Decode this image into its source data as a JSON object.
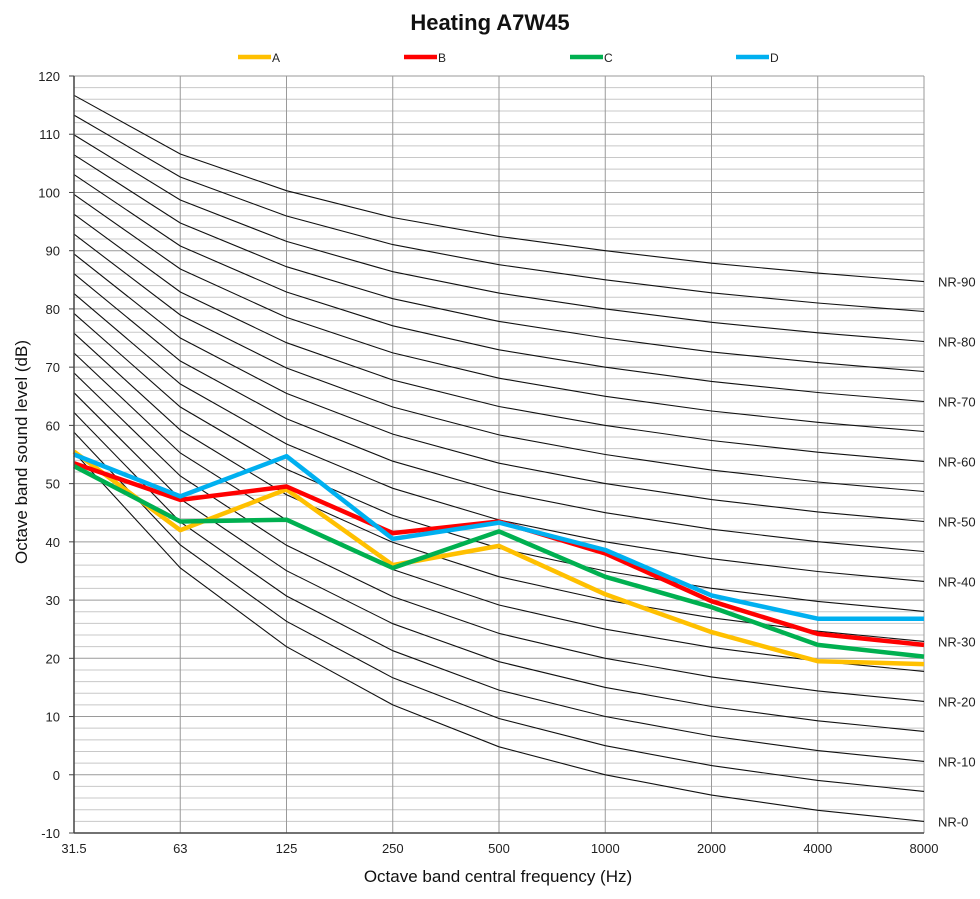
{
  "chart_data": {
    "type": "line",
    "title": "Heating A7W45",
    "xlabel": "Octave band central frequency (Hz)",
    "ylabel": "Octave band sound level (dB)",
    "categories": [
      "31.5",
      "63",
      "125",
      "250",
      "500",
      "1000",
      "2000",
      "4000",
      "8000"
    ],
    "ylim": [
      -10,
      120
    ],
    "yticks": [
      -10,
      0,
      10,
      20,
      30,
      40,
      50,
      60,
      70,
      80,
      90,
      100,
      110,
      120
    ],
    "grid": true,
    "legend_position": "top",
    "series": [
      {
        "name": "A",
        "color": "#FFC000",
        "values": [
          55.5,
          42,
          49,
          36,
          39.3,
          31,
          24.5,
          19.5,
          19
        ]
      },
      {
        "name": "B",
        "color": "#FF0000",
        "values": [
          53.5,
          47.2,
          49.5,
          41.5,
          43.5,
          38,
          29.8,
          24.2,
          22.3
        ]
      },
      {
        "name": "C",
        "color": "#00B050",
        "values": [
          53,
          43.5,
          43.8,
          35.5,
          41.8,
          34,
          28.8,
          22.3,
          20.3
        ]
      },
      {
        "name": "D",
        "color": "#00B0F0",
        "values": [
          55,
          47.8,
          54.7,
          40.5,
          43.3,
          38.6,
          30.8,
          26.8,
          26.8
        ]
      }
    ],
    "nr_curves": {
      "levels": [
        0,
        5,
        10,
        15,
        20,
        25,
        30,
        35,
        40,
        45,
        50,
        55,
        60,
        65,
        70,
        75,
        80,
        85,
        90
      ],
      "labeled": [
        "NR-0",
        "NR-10",
        "NR-20",
        "NR-30",
        "NR-40",
        "NR-50",
        "NR-60",
        "NR-70",
        "NR-80",
        "NR-90"
      ],
      "a": [
        55.4,
        35.5,
        22.0,
        12.0,
        4.8,
        0.0,
        -3.5,
        -6.1,
        -8.0
      ],
      "b": [
        0.681,
        0.79,
        0.87,
        0.93,
        0.974,
        1.0,
        1.015,
        1.025,
        1.03
      ]
    }
  }
}
